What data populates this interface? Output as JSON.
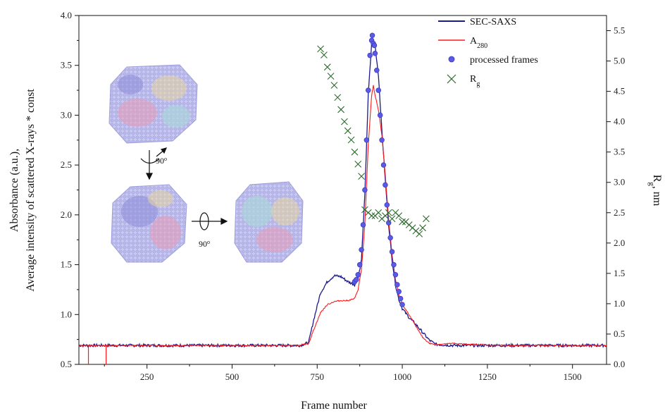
{
  "chart_data": {
    "type": "line",
    "xlabel": "Frame number",
    "ylabel_left_line1": "Absorbance (a.u.),",
    "ylabel_left_line2": "Average intensity of scattered X-rays * const",
    "ylabel_right": "R",
    "ylabel_right_sub": "g",
    "ylabel_right_unit": ", nm",
    "xlim": [
      50,
      1600
    ],
    "ylim_left": [
      0.5,
      4.0
    ],
    "ylim_right": [
      0.0,
      5.75
    ],
    "x_ticks": [
      250,
      500,
      750,
      1000,
      1250,
      1500
    ],
    "x_tick_labels": [
      "250",
      "500",
      "750",
      "1000",
      "1250",
      "1500"
    ],
    "y_left_ticks": [
      0.5,
      1.0,
      1.5,
      2.0,
      2.5,
      3.0,
      3.5,
      4.0
    ],
    "y_left_tick_labels": [
      "0.5",
      "1.0",
      "1.5",
      "2.0",
      "2.5",
      "3.0",
      "3.5",
      "4.0"
    ],
    "y_right_ticks": [
      0.0,
      0.5,
      1.0,
      1.5,
      2.0,
      2.5,
      3.0,
      3.5,
      4.0,
      4.5,
      5.0,
      5.5
    ],
    "y_right_tick_labels": [
      "0.0",
      "0.5",
      "1.0",
      "1.5",
      "2.0",
      "2.5",
      "3.0",
      "3.5",
      "4.0",
      "4.5",
      "5.0",
      "5.5"
    ],
    "legend_position": "top-right",
    "grid": false,
    "series": [
      {
        "name": "SEC-SAXS",
        "kind": "line",
        "color": "#1a1a8c",
        "axis": "left",
        "x": [
          50,
          700,
          725,
          740,
          760,
          780,
          800,
          820,
          840,
          860,
          870,
          880,
          890,
          900,
          910,
          920,
          930,
          940,
          950,
          960,
          970,
          980,
          990,
          1000,
          1020,
          1040,
          1060,
          1080,
          1100,
          1150,
          1200,
          1300,
          1400,
          1500,
          1600
        ],
        "y": [
          0.69,
          0.69,
          0.72,
          0.95,
          1.22,
          1.33,
          1.39,
          1.38,
          1.33,
          1.3,
          1.36,
          1.55,
          2.2,
          3.2,
          3.72,
          3.7,
          3.4,
          2.85,
          2.35,
          1.9,
          1.55,
          1.3,
          1.15,
          1.06,
          0.97,
          0.9,
          0.82,
          0.74,
          0.7,
          0.69,
          0.69,
          0.69,
          0.69,
          0.69,
          0.69
        ]
      },
      {
        "name": "A",
        "name_sub": "280",
        "kind": "line",
        "color": "#ff1a1a",
        "axis": "left",
        "x": [
          50,
          700,
          725,
          740,
          760,
          780,
          800,
          820,
          840,
          860,
          870,
          880,
          890,
          900,
          910,
          915,
          920,
          930,
          940,
          950,
          960,
          970,
          980,
          990,
          1000,
          1020,
          1040,
          1060,
          1080,
          1100,
          1150,
          1200,
          1300,
          1400,
          1500,
          1600
        ],
        "y": [
          0.69,
          0.69,
          0.71,
          0.85,
          1.02,
          1.1,
          1.13,
          1.14,
          1.14,
          1.16,
          1.25,
          1.45,
          1.9,
          2.7,
          3.2,
          3.3,
          3.2,
          3.05,
          2.8,
          2.4,
          1.95,
          1.6,
          1.35,
          1.2,
          1.1,
          1.0,
          0.88,
          0.77,
          0.71,
          0.7,
          0.71,
          0.7,
          0.69,
          0.69,
          0.69,
          0.69
        ]
      },
      {
        "name": "processed frames",
        "kind": "scatter",
        "color": "#5a5ae6",
        "axis": "left",
        "x": [
          860,
          865,
          870,
          875,
          880,
          885,
          890,
          895,
          900,
          905,
          910,
          912,
          915,
          918,
          920,
          925,
          930,
          935,
          940,
          945,
          950,
          955,
          960,
          965,
          970,
          975,
          980,
          985,
          990,
          995,
          1000
        ],
        "y": [
          1.33,
          1.35,
          1.4,
          1.5,
          1.65,
          1.9,
          2.25,
          2.75,
          3.25,
          3.6,
          3.75,
          3.8,
          3.72,
          3.7,
          3.62,
          3.45,
          3.25,
          3.0,
          2.75,
          2.5,
          2.3,
          2.1,
          1.92,
          1.77,
          1.63,
          1.5,
          1.4,
          1.3,
          1.23,
          1.16,
          1.1
        ]
      },
      {
        "name": "R",
        "name_sub": "g",
        "kind": "scatter",
        "color": "#2e6b2e",
        "axis": "right",
        "x": [
          760,
          770,
          780,
          790,
          800,
          810,
          820,
          830,
          840,
          850,
          860,
          870,
          880,
          890,
          900,
          910,
          920,
          930,
          940,
          950,
          960,
          970,
          980,
          990,
          1000,
          1010,
          1020,
          1030,
          1040,
          1050,
          1060,
          1070
        ],
        "y": [
          5.2,
          5.1,
          4.9,
          4.75,
          4.6,
          4.4,
          4.2,
          4.0,
          3.85,
          3.7,
          3.5,
          3.3,
          3.1,
          2.55,
          2.5,
          2.45,
          2.45,
          2.5,
          2.4,
          2.45,
          2.5,
          2.4,
          2.5,
          2.45,
          2.35,
          2.35,
          2.3,
          2.25,
          2.2,
          2.15,
          2.25,
          2.4
        ]
      }
    ],
    "annotations": [
      {
        "text": "90",
        "sup": "o"
      },
      {
        "text": "90",
        "sup": "o"
      }
    ]
  }
}
